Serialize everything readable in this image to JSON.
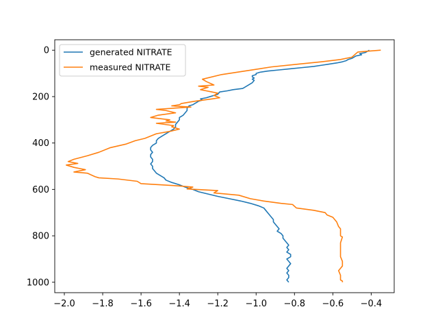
{
  "chart_data": {
    "type": "line",
    "title": "",
    "xlabel": "",
    "ylabel": "",
    "xlim": [
      -2.05,
      -0.28
    ],
    "ylim": [
      1045,
      -45
    ],
    "y_inverted": true,
    "grid": false,
    "legend_placement": "top-left",
    "x_ticks": [
      -2.0,
      -1.8,
      -1.6,
      -1.4,
      -1.2,
      -1.0,
      -0.8,
      -0.6,
      -0.4
    ],
    "x_tick_labels": [
      "−2.0",
      "−1.8",
      "−1.6",
      "−1.4",
      "−1.2",
      "−1.0",
      "−0.8",
      "−0.6",
      "−0.4"
    ],
    "y_ticks": [
      0,
      200,
      400,
      600,
      800,
      1000
    ],
    "y_tick_labels": [
      "0",
      "200",
      "400",
      "600",
      "800",
      "1000"
    ],
    "series": [
      {
        "name": "generated NITRATE",
        "color": "#1f77b4",
        "points": [
          [
            -0.41,
            0
          ],
          [
            -0.42,
            5
          ],
          [
            -0.43,
            10
          ],
          [
            -0.46,
            15
          ],
          [
            -0.45,
            20
          ],
          [
            -0.48,
            25
          ],
          [
            -0.49,
            30
          ],
          [
            -0.5,
            35
          ],
          [
            -0.52,
            40
          ],
          [
            -0.53,
            45
          ],
          [
            -0.55,
            50
          ],
          [
            -0.58,
            55
          ],
          [
            -0.62,
            60
          ],
          [
            -0.66,
            65
          ],
          [
            -0.7,
            70
          ],
          [
            -0.76,
            75
          ],
          [
            -0.82,
            80
          ],
          [
            -0.88,
            85
          ],
          [
            -0.94,
            90
          ],
          [
            -0.98,
            95
          ],
          [
            -1.0,
            100
          ],
          [
            -1.0,
            105
          ],
          [
            -1.02,
            110
          ],
          [
            -1.02,
            115
          ],
          [
            -1.01,
            120
          ],
          [
            -1.02,
            125
          ],
          [
            -1.01,
            130
          ],
          [
            -1.02,
            140
          ],
          [
            -1.04,
            150
          ],
          [
            -1.06,
            160
          ],
          [
            -1.07,
            165
          ],
          [
            -1.12,
            170
          ],
          [
            -1.15,
            175
          ],
          [
            -1.19,
            180
          ],
          [
            -1.2,
            190
          ],
          [
            -1.22,
            195
          ],
          [
            -1.24,
            200
          ],
          [
            -1.26,
            205
          ],
          [
            -1.29,
            210
          ],
          [
            -1.28,
            215
          ],
          [
            -1.3,
            220
          ],
          [
            -1.31,
            225
          ],
          [
            -1.32,
            230
          ],
          [
            -1.33,
            235
          ],
          [
            -1.35,
            240
          ],
          [
            -1.36,
            250
          ],
          [
            -1.36,
            260
          ],
          [
            -1.37,
            270
          ],
          [
            -1.38,
            280
          ],
          [
            -1.4,
            290
          ],
          [
            -1.4,
            300
          ],
          [
            -1.41,
            310
          ],
          [
            -1.42,
            320
          ],
          [
            -1.42,
            330
          ],
          [
            -1.43,
            340
          ],
          [
            -1.45,
            350
          ],
          [
            -1.47,
            360
          ],
          [
            -1.49,
            370
          ],
          [
            -1.51,
            380
          ],
          [
            -1.52,
            390
          ],
          [
            -1.52,
            400
          ],
          [
            -1.54,
            410
          ],
          [
            -1.55,
            420
          ],
          [
            -1.55,
            430
          ],
          [
            -1.54,
            440
          ],
          [
            -1.55,
            450
          ],
          [
            -1.55,
            460
          ],
          [
            -1.54,
            470
          ],
          [
            -1.54,
            480
          ],
          [
            -1.55,
            490
          ],
          [
            -1.54,
            500
          ],
          [
            -1.54,
            510
          ],
          [
            -1.53,
            520
          ],
          [
            -1.52,
            530
          ],
          [
            -1.5,
            540
          ],
          [
            -1.48,
            550
          ],
          [
            -1.47,
            560
          ],
          [
            -1.44,
            570
          ],
          [
            -1.4,
            580
          ],
          [
            -1.37,
            590
          ],
          [
            -1.33,
            600
          ],
          [
            -1.3,
            610
          ],
          [
            -1.25,
            620
          ],
          [
            -1.2,
            630
          ],
          [
            -1.14,
            640
          ],
          [
            -1.08,
            650
          ],
          [
            -1.03,
            660
          ],
          [
            -0.99,
            670
          ],
          [
            -0.96,
            680
          ],
          [
            -0.95,
            690
          ],
          [
            -0.94,
            700
          ],
          [
            -0.93,
            710
          ],
          [
            -0.92,
            720
          ],
          [
            -0.91,
            730
          ],
          [
            -0.91,
            740
          ],
          [
            -0.9,
            750
          ],
          [
            -0.89,
            760
          ],
          [
            -0.88,
            770
          ],
          [
            -0.89,
            780
          ],
          [
            -0.87,
            790
          ],
          [
            -0.86,
            800
          ],
          [
            -0.86,
            810
          ],
          [
            -0.85,
            820
          ],
          [
            -0.84,
            830
          ],
          [
            -0.83,
            840
          ],
          [
            -0.84,
            850
          ],
          [
            -0.83,
            860
          ],
          [
            -0.84,
            870
          ],
          [
            -0.82,
            880
          ],
          [
            -0.82,
            890
          ],
          [
            -0.84,
            900
          ],
          [
            -0.83,
            910
          ],
          [
            -0.82,
            920
          ],
          [
            -0.83,
            930
          ],
          [
            -0.84,
            940
          ],
          [
            -0.83,
            950
          ],
          [
            -0.84,
            960
          ],
          [
            -0.83,
            970
          ],
          [
            -0.83,
            980
          ],
          [
            -0.84,
            990
          ],
          [
            -0.83,
            1000
          ]
        ]
      },
      {
        "name": "measured NITRATE",
        "color": "#ff7f0e",
        "points": [
          [
            -0.35,
            0
          ],
          [
            -0.43,
            5
          ],
          [
            -0.47,
            8
          ],
          [
            -0.48,
            15
          ],
          [
            -0.5,
            30
          ],
          [
            -0.56,
            40
          ],
          [
            -0.66,
            50
          ],
          [
            -0.78,
            60
          ],
          [
            -0.92,
            72
          ],
          [
            -1.06,
            90
          ],
          [
            -1.18,
            105
          ],
          [
            -1.28,
            125
          ],
          [
            -1.26,
            135
          ],
          [
            -1.22,
            150
          ],
          [
            -1.3,
            155
          ],
          [
            -1.25,
            160
          ],
          [
            -1.29,
            170
          ],
          [
            -1.26,
            175
          ],
          [
            -1.23,
            180
          ],
          [
            -1.2,
            185
          ],
          [
            -1.22,
            195
          ],
          [
            -1.19,
            205
          ],
          [
            -1.23,
            210
          ],
          [
            -1.32,
            220
          ],
          [
            -1.39,
            230
          ],
          [
            -1.4,
            235
          ],
          [
            -1.44,
            240
          ],
          [
            -1.34,
            245
          ],
          [
            -1.52,
            255
          ],
          [
            -1.47,
            260
          ],
          [
            -1.42,
            270
          ],
          [
            -1.51,
            280
          ],
          [
            -1.55,
            290
          ],
          [
            -1.45,
            300
          ],
          [
            -1.47,
            305
          ],
          [
            -1.42,
            310
          ],
          [
            -1.52,
            315
          ],
          [
            -1.43,
            325
          ],
          [
            -1.44,
            330
          ],
          [
            -1.4,
            340
          ],
          [
            -1.45,
            350
          ],
          [
            -1.52,
            360
          ],
          [
            -1.58,
            380
          ],
          [
            -1.63,
            390
          ],
          [
            -1.68,
            405
          ],
          [
            -1.76,
            420
          ],
          [
            -1.82,
            440
          ],
          [
            -1.88,
            455
          ],
          [
            -1.95,
            470
          ],
          [
            -1.98,
            480
          ],
          [
            -1.93,
            488
          ],
          [
            -1.99,
            495
          ],
          [
            -1.95,
            505
          ],
          [
            -1.92,
            510
          ],
          [
            -1.89,
            515
          ],
          [
            -1.95,
            525
          ],
          [
            -1.88,
            530
          ],
          [
            -1.84,
            545
          ],
          [
            -1.82,
            550
          ],
          [
            -1.72,
            555
          ],
          [
            -1.62,
            565
          ],
          [
            -1.6,
            575
          ],
          [
            -1.4,
            585
          ],
          [
            -1.33,
            590
          ],
          [
            -1.36,
            598
          ],
          [
            -1.2,
            605
          ],
          [
            -1.22,
            615
          ],
          [
            -1.09,
            625
          ],
          [
            -1.03,
            640
          ],
          [
            -0.96,
            650
          ],
          [
            -0.87,
            660
          ],
          [
            -0.81,
            665
          ],
          [
            -0.79,
            680
          ],
          [
            -0.7,
            690
          ],
          [
            -0.64,
            700
          ],
          [
            -0.63,
            710
          ],
          [
            -0.6,
            720
          ],
          [
            -0.58,
            740
          ],
          [
            -0.57,
            760
          ],
          [
            -0.56,
            770
          ],
          [
            -0.56,
            790
          ],
          [
            -0.56,
            800
          ],
          [
            -0.55,
            805
          ],
          [
            -0.56,
            830
          ],
          [
            -0.56,
            860
          ],
          [
            -0.56,
            890
          ],
          [
            -0.55,
            910
          ],
          [
            -0.55,
            930
          ],
          [
            -0.56,
            940
          ],
          [
            -0.57,
            950
          ],
          [
            -0.56,
            970
          ],
          [
            -0.56,
            990
          ],
          [
            -0.55,
            995
          ],
          [
            -0.55,
            1000
          ]
        ]
      }
    ]
  }
}
